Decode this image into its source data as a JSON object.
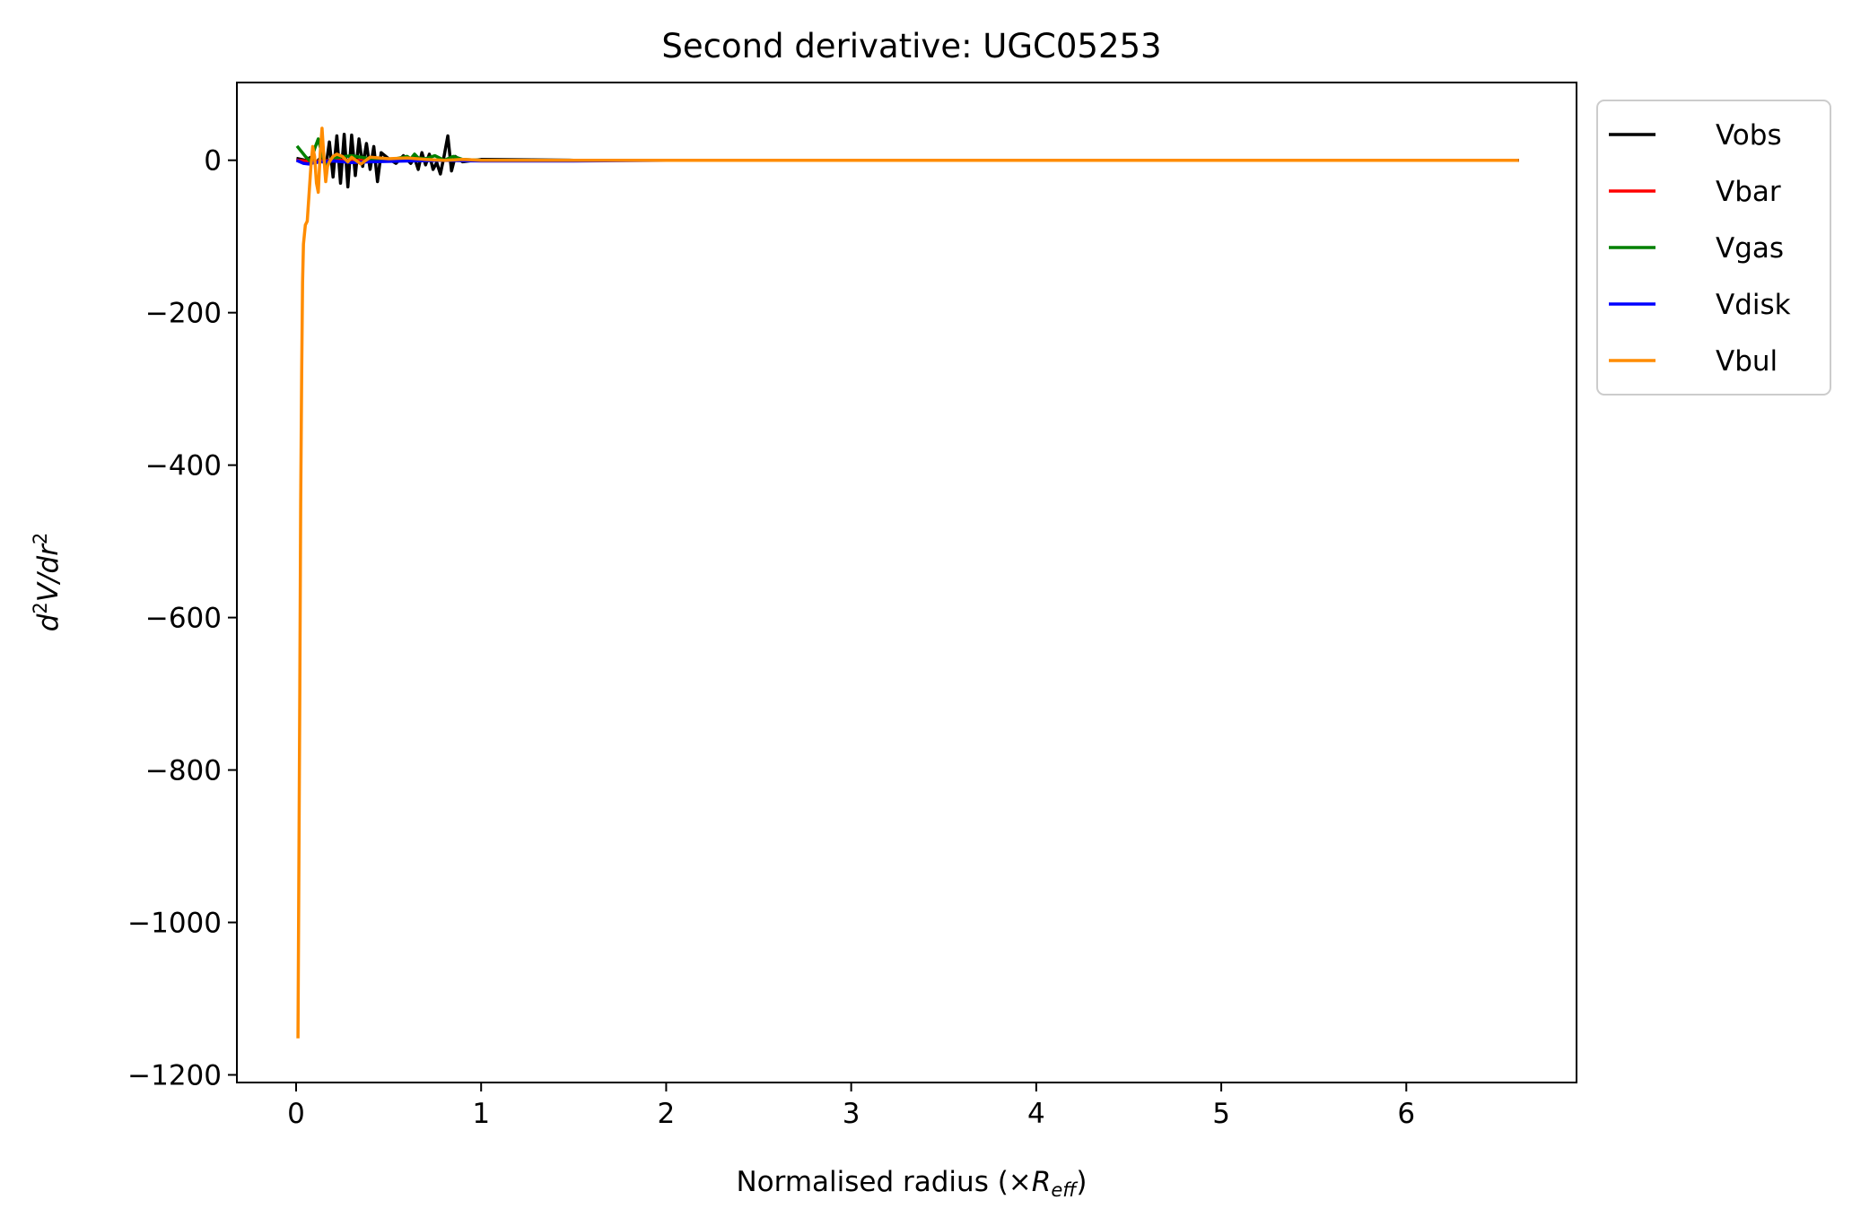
{
  "chart_data": {
    "type": "line",
    "title": "Second derivative: UGC05253",
    "xlabel_main": "Normalised radius (×",
    "xlabel_var": "R",
    "xlabel_sub": "eff",
    "xlabel_close": ")",
    "ylabel_parts": [
      "d",
      "2",
      "V/dr",
      "2"
    ],
    "xlim": [
      -0.32,
      6.92
    ],
    "ylim": [
      -1210,
      102
    ],
    "x_ticks": [
      0,
      1,
      2,
      3,
      4,
      5,
      6
    ],
    "x_tick_labels": [
      "0",
      "1",
      "2",
      "3",
      "4",
      "5",
      "6"
    ],
    "y_ticks": [
      0,
      -200,
      -400,
      -600,
      -800,
      -1000,
      -1200
    ],
    "y_tick_labels": [
      "0",
      "−200",
      "−400",
      "−600",
      "−800",
      "−1000",
      "−1200"
    ],
    "legend_position": "outside upper right",
    "grid": false,
    "series": [
      {
        "name": "Vobs",
        "color": "#000000",
        "x": [
          0.01,
          0.05,
          0.08,
          0.11,
          0.14,
          0.16,
          0.18,
          0.2,
          0.22,
          0.24,
          0.26,
          0.28,
          0.3,
          0.32,
          0.34,
          0.36,
          0.38,
          0.4,
          0.42,
          0.44,
          0.46,
          0.5,
          0.54,
          0.58,
          0.62,
          0.64,
          0.66,
          0.68,
          0.7,
          0.72,
          0.74,
          0.76,
          0.78,
          0.8,
          0.82,
          0.84,
          0.86,
          0.9,
          1.0,
          1.5,
          2.0,
          3.0,
          4.0,
          5.0,
          6.0,
          6.6
        ],
        "y": [
          2,
          0,
          4,
          -3,
          6,
          -10,
          24,
          -22,
          32,
          -30,
          34,
          -35,
          33,
          -20,
          28,
          -8,
          22,
          -12,
          18,
          -28,
          10,
          2,
          -4,
          6,
          -4,
          3,
          -12,
          10,
          -6,
          8,
          -12,
          -3,
          -18,
          6,
          32,
          -14,
          5,
          -2,
          1,
          0,
          0,
          0,
          0,
          0,
          0,
          0
        ]
      },
      {
        "name": "Vbar",
        "color": "#ff0000",
        "x": [
          0.01,
          0.05,
          0.1,
          0.15,
          0.2,
          0.3,
          0.5,
          1.0,
          2.0,
          4.0,
          6.6
        ],
        "y": [
          0,
          -1,
          -2,
          -1,
          0,
          0,
          0,
          0,
          0,
          0,
          0
        ]
      },
      {
        "name": "Vgas",
        "color": "#008000",
        "x": [
          0.01,
          0.05,
          0.08,
          0.1,
          0.12,
          0.14,
          0.16,
          0.2,
          0.3,
          0.4,
          0.5,
          0.6,
          0.62,
          0.64,
          0.66,
          0.7,
          0.75,
          0.8,
          0.85,
          0.9,
          1.0,
          2.0,
          4.0,
          6.6
        ],
        "y": [
          17,
          5,
          -2,
          15,
          28,
          8,
          -5,
          3,
          6,
          2,
          0,
          5,
          2,
          8,
          3,
          2,
          6,
          0,
          5,
          1,
          0,
          0,
          0,
          0
        ]
      },
      {
        "name": "Vdisk",
        "color": "#0000ff",
        "x": [
          0.01,
          0.04,
          0.07,
          0.1,
          0.14,
          0.2,
          0.3,
          0.4,
          0.6,
          0.8,
          1.0,
          1.5,
          2.0,
          4.0,
          6.6
        ],
        "y": [
          -1,
          -4,
          -5,
          -3,
          -2,
          -1,
          -3,
          -2,
          -1,
          0,
          -1,
          -1,
          0,
          0,
          0
        ]
      },
      {
        "name": "Vbul",
        "color": "#ff8c00",
        "x": [
          0.01,
          0.02,
          0.025,
          0.03,
          0.035,
          0.04,
          0.05,
          0.06,
          0.07,
          0.08,
          0.09,
          0.1,
          0.11,
          0.12,
          0.13,
          0.14,
          0.15,
          0.16,
          0.17,
          0.18,
          0.2,
          0.22,
          0.25,
          0.28,
          0.3,
          0.35,
          0.4,
          0.5,
          0.6,
          0.7,
          0.8,
          0.9,
          1.0,
          2.0,
          4.0,
          6.6
        ],
        "y": [
          -1150,
          -700,
          -450,
          -280,
          -160,
          -110,
          -85,
          -80,
          -45,
          -8,
          18,
          5,
          -30,
          -42,
          8,
          42,
          5,
          -28,
          -8,
          -2,
          5,
          8,
          5,
          -2,
          4,
          -5,
          4,
          2,
          3,
          1,
          0,
          1,
          0,
          0,
          0,
          0
        ]
      }
    ]
  }
}
